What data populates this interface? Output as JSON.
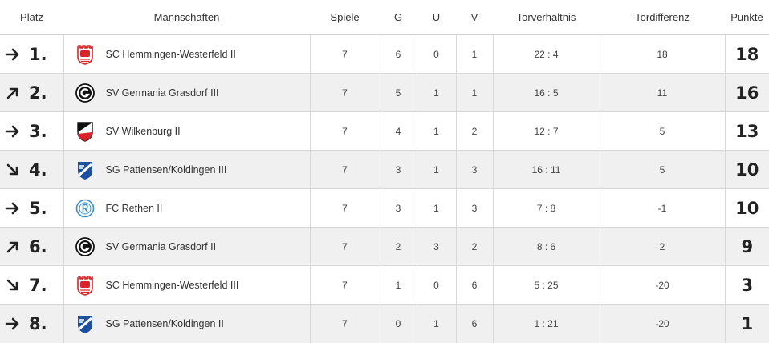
{
  "headers": {
    "place": "Platz",
    "teams": "Mannschaften",
    "games": "Spiele",
    "wins": "G",
    "draws": "U",
    "losses": "V",
    "goals": "Torverhältnis",
    "goal_diff": "Tordifferenz",
    "points": "Punkte"
  },
  "rows": [
    {
      "trend": "same",
      "trend_icon": "arrow-right-icon",
      "place": "1.",
      "logo": "sc-hemmingen-westerfeld-logo",
      "team": "SC Hemmingen-Westerfeld II",
      "games": "7",
      "wins": "6",
      "draws": "0",
      "losses": "1",
      "goals": "22 : 4",
      "diff": "18",
      "points": "18"
    },
    {
      "trend": "up",
      "trend_icon": "arrow-up-right-icon",
      "place": "2.",
      "logo": "sv-germania-grasdorf-logo",
      "team": "SV Germania Grasdorf III",
      "games": "7",
      "wins": "5",
      "draws": "1",
      "losses": "1",
      "goals": "16 : 5",
      "diff": "11",
      "points": "16"
    },
    {
      "trend": "same",
      "trend_icon": "arrow-right-icon",
      "place": "3.",
      "logo": "sv-wilkenburg-logo",
      "team": "SV Wilkenburg II",
      "games": "7",
      "wins": "4",
      "draws": "1",
      "losses": "2",
      "goals": "12 : 7",
      "diff": "5",
      "points": "13"
    },
    {
      "trend": "down",
      "trend_icon": "arrow-down-right-icon",
      "place": "4.",
      "logo": "sg-pattensen-koldingen-logo",
      "team": "SG Pattensen/Koldingen III",
      "games": "7",
      "wins": "3",
      "draws": "1",
      "losses": "3",
      "goals": "16 : 11",
      "diff": "5",
      "points": "10"
    },
    {
      "trend": "same",
      "trend_icon": "arrow-right-icon",
      "place": "5.",
      "logo": "fc-rethen-logo",
      "team": "FC Rethen II",
      "games": "7",
      "wins": "3",
      "draws": "1",
      "losses": "3",
      "goals": "7 : 8",
      "diff": "-1",
      "points": "10"
    },
    {
      "trend": "up",
      "trend_icon": "arrow-up-right-icon",
      "place": "6.",
      "logo": "sv-germania-grasdorf-logo",
      "team": "SV Germania Grasdorf II",
      "games": "7",
      "wins": "2",
      "draws": "3",
      "losses": "2",
      "goals": "8 : 6",
      "diff": "2",
      "points": "9"
    },
    {
      "trend": "down",
      "trend_icon": "arrow-down-right-icon",
      "place": "7.",
      "logo": "sc-hemmingen-westerfeld-logo",
      "team": "SC Hemmingen-Westerfeld III",
      "games": "7",
      "wins": "1",
      "draws": "0",
      "losses": "6",
      "goals": "5 : 25",
      "diff": "-20",
      "points": "3"
    },
    {
      "trend": "same",
      "trend_icon": "arrow-right-icon",
      "place": "8.",
      "logo": "sg-pattensen-koldingen-logo",
      "team": "SG Pattensen/Koldingen II",
      "games": "7",
      "wins": "0",
      "draws": "1",
      "losses": "6",
      "goals": "1 : 21",
      "diff": "-20",
      "points": "1"
    }
  ],
  "colors": {
    "even_row_bg": "#f0f0f0",
    "odd_row_bg": "#ffffff",
    "grid_line": "#d9d9d9",
    "hemmingen_red": "#d9252a",
    "pattensen_blue": "#1d4fa0",
    "rethen_blue": "#3a8fc9"
  }
}
